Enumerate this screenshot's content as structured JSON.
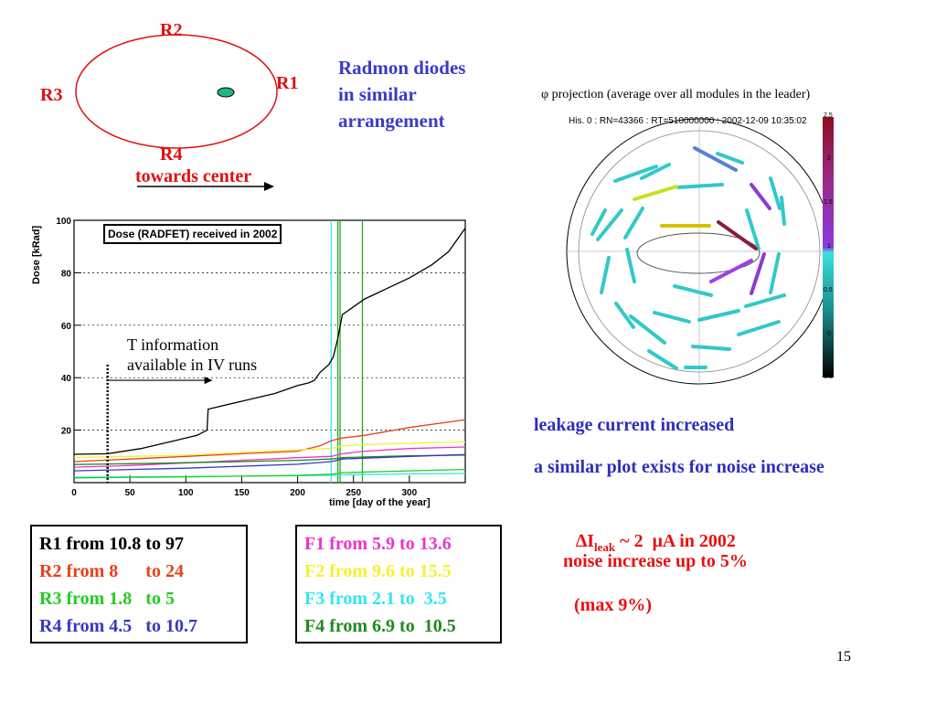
{
  "diagram": {
    "r1": "R1",
    "r2": "R2",
    "r3": "R3",
    "r4": "R4",
    "towards_center": "towards center"
  },
  "radmon_note": [
    "Radmon diodes",
    "in similar",
    "arrangement"
  ],
  "phi_plot": {
    "title": "φ projection (average over all modules in the leader)",
    "subtitle": "His. 0 : RN=43366 : RT=510000000 : 2002-12-09 10:35:02",
    "colorbar_ticks": [
      "2.5",
      "2",
      "1.5",
      "1",
      "0.5",
      "0",
      "-0.5"
    ]
  },
  "leakage_note": "leakage current increased",
  "noise_note": "a similar plot exists for noise increase",
  "ileak_symbol": "∆",
  "ileak_main": "I",
  "ileak_sub": "leak",
  "ileak_tail": " ~ 2  μA in 2002",
  "noise_increase": "noise increase up to 5%",
  "max_note": "(max 9%)",
  "r_box": [
    {
      "text": "R1 from 10.8 to 97",
      "color": "#000000"
    },
    {
      "text": "R2 from 8      to 24",
      "color": "#e8401a"
    },
    {
      "text": "R3 from 1.8   to 5",
      "color": "#22cc22"
    },
    {
      "text": "R4 from 4.5   to 10.7",
      "color": "#3838c0"
    }
  ],
  "f_box": [
    {
      "text": "F1 from 5.9 to 13.6",
      "color": "#ee33cc"
    },
    {
      "text": "F2 from 9.6 to 15.5",
      "color": "#f2f230"
    },
    {
      "text": "F3 from 2.1 to  3.5",
      "color": "#33e6ee"
    },
    {
      "text": "F4 from 6.9 to  10.5",
      "color": "#1f8a1f"
    }
  ],
  "page_number": "15",
  "chart_data": {
    "type": "line",
    "title": "Dose (RADFET) received in 2002",
    "xlabel": "time [day of the year]",
    "ylabel": "Dose [kRad]",
    "xlim": [
      0,
      350
    ],
    "ylim": [
      0,
      100
    ],
    "x_ticks": [
      "0",
      "50",
      "100",
      "150",
      "200",
      "250",
      "300"
    ],
    "y_ticks": [
      "20",
      "40",
      "60",
      "80",
      "100"
    ],
    "grid": true,
    "annotation": [
      "T information",
      "available in IV runs"
    ],
    "vertical_markers": [
      {
        "x": 230,
        "color": "#33e6ee"
      },
      {
        "x": 236,
        "color": "#22aa22"
      },
      {
        "x": 238,
        "color": "#22aa22"
      },
      {
        "x": 258,
        "color": "#22aa22"
      }
    ],
    "series": [
      {
        "color": "#000000",
        "x": [
          0,
          30,
          60,
          90,
          110,
          119,
          120,
          150,
          180,
          200,
          210,
          215,
          220,
          228,
          232,
          236,
          240,
          250,
          260,
          270,
          280,
          300,
          320,
          335,
          345,
          350
        ],
        "y": [
          10.8,
          11,
          13,
          16,
          18,
          20,
          28,
          31,
          34,
          37,
          38,
          39,
          42,
          45,
          48,
          55,
          64,
          67,
          70,
          72,
          74,
          78,
          83,
          88,
          94,
          97
        ]
      },
      {
        "color": "#e8401a",
        "x": [
          0,
          50,
          100,
          150,
          200,
          220,
          230,
          240,
          260,
          300,
          350
        ],
        "y": [
          8,
          9,
          10,
          11,
          12,
          14,
          16,
          17,
          18,
          21,
          24
        ]
      },
      {
        "color": "#ee33cc",
        "x": [
          0,
          50,
          100,
          150,
          200,
          230,
          240,
          260,
          300,
          350
        ],
        "y": [
          5.9,
          6.5,
          7.5,
          8.5,
          9.5,
          10,
          11,
          12,
          13,
          13.6
        ]
      },
      {
        "color": "#f2f230",
        "x": [
          0,
          50,
          100,
          150,
          200,
          230,
          240,
          260,
          300,
          350
        ],
        "y": [
          9.6,
          10,
          10.5,
          11.5,
          12.5,
          13,
          14,
          14.5,
          15,
          15.5
        ]
      },
      {
        "color": "#1f8a1f",
        "x": [
          0,
          50,
          100,
          150,
          200,
          230,
          240,
          260,
          300,
          350
        ],
        "y": [
          6.9,
          7.2,
          7.6,
          8,
          8.5,
          9,
          9.5,
          9.8,
          10.2,
          10.5
        ]
      },
      {
        "color": "#33e6ee",
        "x": [
          0,
          100,
          200,
          230,
          240,
          300,
          350
        ],
        "y": [
          2.1,
          2.3,
          2.6,
          2.8,
          3,
          3.3,
          3.5
        ]
      },
      {
        "color": "#3838c0",
        "x": [
          0,
          100,
          200,
          230,
          240,
          300,
          350
        ],
        "y": [
          4.5,
          5.5,
          7,
          8,
          9,
          10,
          10.7
        ]
      },
      {
        "color": "#22cc22",
        "x": [
          0,
          100,
          200,
          230,
          240,
          300,
          350
        ],
        "y": [
          1.8,
          2.2,
          2.8,
          3.2,
          3.8,
          4.5,
          5
        ]
      }
    ]
  }
}
